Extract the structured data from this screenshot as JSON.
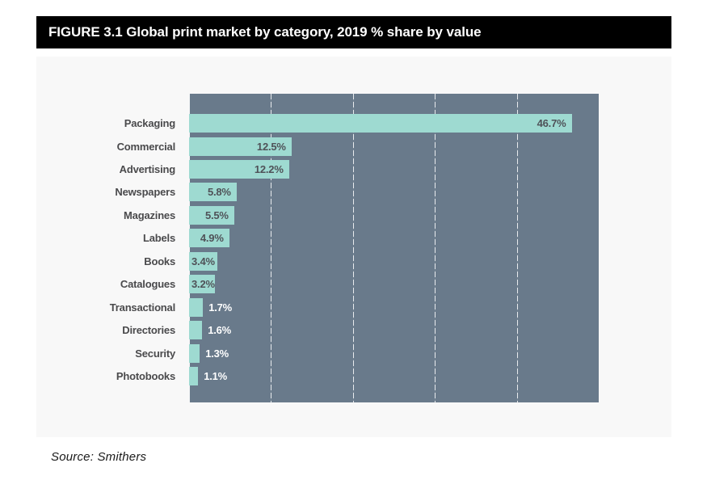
{
  "header": {
    "title": "FIGURE 3.1 Global print market by category, 2019 % share by value"
  },
  "footer": {
    "source": "Source: Smithers"
  },
  "chart_data": {
    "type": "bar",
    "orientation": "horizontal",
    "title": "FIGURE 3.1 Global print market by category, 2019 % share by value",
    "categories": [
      "Packaging",
      "Commercial",
      "Advertising",
      "Newspapers",
      "Magazines",
      "Labels",
      "Books",
      "Catalogues",
      "Transactional",
      "Directories",
      "Security",
      "Photobooks"
    ],
    "values": [
      46.7,
      12.5,
      12.2,
      5.8,
      5.5,
      4.9,
      3.4,
      3.2,
      1.7,
      1.6,
      1.3,
      1.1
    ],
    "value_labels": [
      "46.7%",
      "12.5%",
      "12.2%",
      "5.8%",
      "5.5%",
      "4.9%",
      "3.4%",
      "3.2%",
      "1.7%",
      "1.6%",
      "1.3%",
      "1.1%"
    ],
    "xlabel": "",
    "ylabel": "",
    "xlim": [
      0,
      50
    ],
    "gridline_values": [
      10,
      20,
      30,
      40
    ],
    "grid": "vertical-dashed-white",
    "legend": "none",
    "source": "Source: Smithers",
    "colors": {
      "bar": "#9edad1",
      "plot_background": "#697a8b",
      "panel_background": "#f8f8f8",
      "title_bar_background": "#000000",
      "title_text": "#ffffff",
      "category_text": "#4a4a4c",
      "value_text_dark": "#4f5258",
      "value_text_light": "#ffffff"
    }
  }
}
